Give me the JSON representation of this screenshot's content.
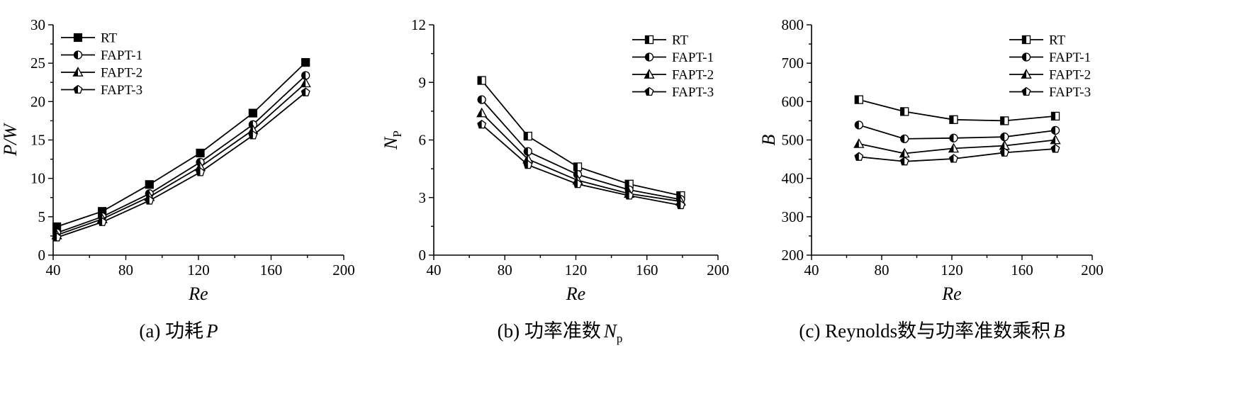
{
  "chart_data": [
    {
      "type": "line",
      "caption": "(a) 功耗",
      "caption_symbol": "P",
      "xlabel": "Re",
      "ylabel": "P/W",
      "xlim": [
        40,
        200
      ],
      "ylim": [
        0,
        30
      ],
      "xticks": [
        40,
        80,
        120,
        160,
        200
      ],
      "yticks": [
        0,
        5,
        10,
        15,
        20,
        25,
        30
      ],
      "legend_position": "top-left",
      "series": [
        {
          "name": "RT",
          "marker": "square-filled",
          "x": [
            42,
            67,
            93,
            121,
            150,
            179
          ],
          "y": [
            3.7,
            5.7,
            9.2,
            13.3,
            18.5,
            25.1
          ]
        },
        {
          "name": "FAPT-1",
          "marker": "circle-half-left",
          "x": [
            42,
            67,
            93,
            121,
            150,
            179
          ],
          "y": [
            2.9,
            5.0,
            8.0,
            12.1,
            17.0,
            23.4
          ]
        },
        {
          "name": "FAPT-2",
          "marker": "triangle-half",
          "x": [
            42,
            67,
            93,
            121,
            150,
            179
          ],
          "y": [
            2.6,
            4.7,
            7.6,
            11.5,
            16.3,
            22.4
          ]
        },
        {
          "name": "FAPT-3",
          "marker": "pentagon-half",
          "x": [
            42,
            67,
            93,
            121,
            150,
            179
          ],
          "y": [
            2.3,
            4.3,
            7.1,
            10.8,
            15.6,
            21.2
          ]
        }
      ]
    },
    {
      "type": "line",
      "caption": "(b) 功率准数",
      "caption_symbol": "N",
      "caption_subscript": "p",
      "xlabel": "Re",
      "ylabel": "N",
      "ylabel_subscript": "P",
      "xlim": [
        40,
        200
      ],
      "ylim": [
        0,
        12
      ],
      "xticks": [
        40,
        80,
        120,
        160,
        200
      ],
      "yticks": [
        0,
        3,
        6,
        9,
        12
      ],
      "legend_position": "top-right",
      "series": [
        {
          "name": "RT",
          "marker": "square-half",
          "x": [
            67,
            93,
            121,
            150,
            179
          ],
          "y": [
            9.1,
            6.2,
            4.6,
            3.7,
            3.1
          ]
        },
        {
          "name": "FAPT-1",
          "marker": "circle-half-left",
          "x": [
            67,
            93,
            121,
            150,
            179
          ],
          "y": [
            8.1,
            5.4,
            4.2,
            3.4,
            2.9
          ]
        },
        {
          "name": "FAPT-2",
          "marker": "triangle-half",
          "x": [
            67,
            93,
            121,
            150,
            179
          ],
          "y": [
            7.4,
            5.0,
            3.9,
            3.2,
            2.8
          ]
        },
        {
          "name": "FAPT-3",
          "marker": "pentagon-half",
          "x": [
            67,
            93,
            121,
            150,
            179
          ],
          "y": [
            6.8,
            4.7,
            3.7,
            3.1,
            2.6
          ]
        }
      ]
    },
    {
      "type": "line",
      "caption": "(c) Reynolds数与功率准数乘积",
      "caption_symbol": "B",
      "xlabel": "Re",
      "ylabel": "B",
      "xlim": [
        40,
        200
      ],
      "ylim": [
        200,
        800
      ],
      "xticks": [
        40,
        80,
        120,
        160,
        200
      ],
      "yticks": [
        200,
        300,
        400,
        500,
        600,
        700,
        800
      ],
      "legend_position": "top-right",
      "series": [
        {
          "name": "RT",
          "marker": "square-half",
          "x": [
            67,
            93,
            121,
            150,
            179
          ],
          "y": [
            605,
            574,
            553,
            550,
            562
          ]
        },
        {
          "name": "FAPT-1",
          "marker": "circle-half-left",
          "x": [
            67,
            93,
            121,
            150,
            179
          ],
          "y": [
            539,
            503,
            505,
            508,
            525
          ]
        },
        {
          "name": "FAPT-2",
          "marker": "triangle-half",
          "x": [
            67,
            93,
            121,
            150,
            179
          ],
          "y": [
            490,
            465,
            478,
            485,
            500
          ]
        },
        {
          "name": "FAPT-3",
          "marker": "pentagon-half",
          "x": [
            67,
            93,
            121,
            150,
            179
          ],
          "y": [
            456,
            444,
            451,
            467,
            477
          ]
        }
      ]
    }
  ]
}
